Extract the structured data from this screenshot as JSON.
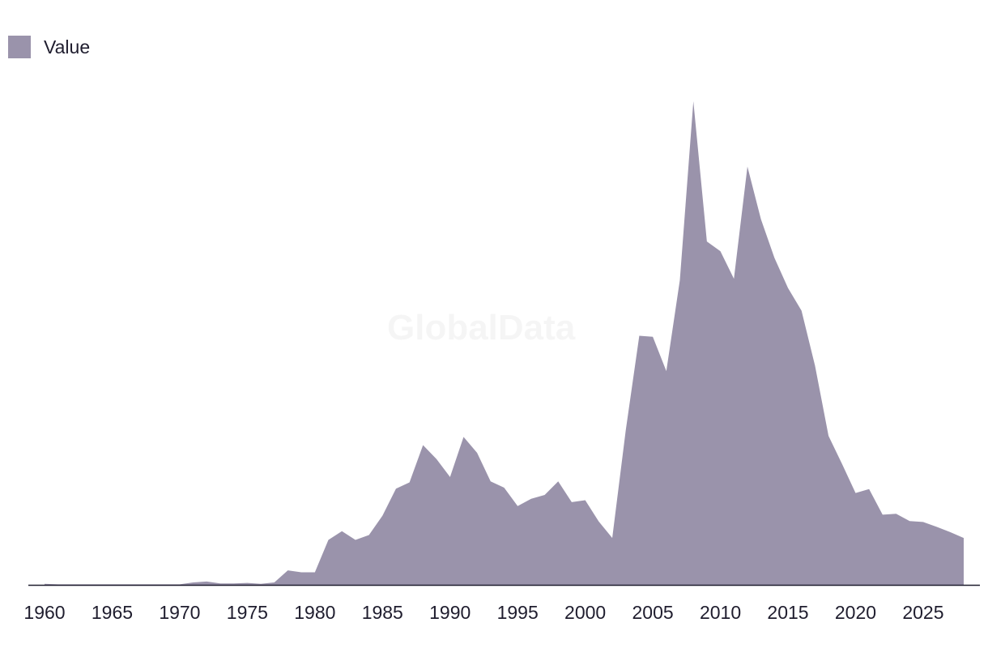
{
  "legend": {
    "label": "Value"
  },
  "watermark": "GlobalData",
  "colors": {
    "area": "#9a93ab",
    "axis": "#1f1d2e"
  },
  "chart_data": {
    "type": "area",
    "title": "",
    "xlabel": "",
    "ylabel": "",
    "grid": false,
    "legend_position": "top-left",
    "xlim": [
      1960,
      2028
    ],
    "ylim": [
      0,
      100
    ],
    "x_ticks": [
      1960,
      1965,
      1970,
      1975,
      1980,
      1985,
      1990,
      1995,
      2000,
      2005,
      2010,
      2015,
      2020,
      2025
    ],
    "series": [
      {
        "name": "Value",
        "x": [
          1960,
          1961,
          1962,
          1963,
          1964,
          1965,
          1966,
          1967,
          1968,
          1969,
          1970,
          1971,
          1972,
          1973,
          1974,
          1975,
          1976,
          1977,
          1978,
          1979,
          1980,
          1981,
          1982,
          1983,
          1984,
          1985,
          1986,
          1987,
          1988,
          1989,
          1990,
          1991,
          1992,
          1993,
          1994,
          1995,
          1996,
          1997,
          1998,
          1999,
          2000,
          2001,
          2002,
          2003,
          2004,
          2005,
          2006,
          2007,
          2008,
          2009,
          2010,
          2011,
          2012,
          2013,
          2014,
          2015,
          2016,
          2017,
          2018,
          2019,
          2020,
          2021,
          2022,
          2023,
          2024,
          2025,
          2026,
          2027,
          2028
        ],
        "values": [
          0.2,
          0.1,
          0.1,
          0.1,
          0.1,
          0.1,
          0.1,
          0.1,
          0.1,
          0.1,
          0.1,
          0.5,
          0.7,
          0.3,
          0.3,
          0.4,
          0.2,
          0.5,
          3.0,
          2.6,
          2.6,
          9.3,
          11.1,
          9.3,
          10.3,
          14.3,
          19.9,
          21.2,
          28.9,
          26.0,
          22.3,
          30.6,
          27.3,
          21.4,
          20.1,
          16.3,
          17.8,
          18.6,
          21.4,
          17.1,
          17.5,
          13.1,
          9.7,
          32.0,
          51.5,
          51.3,
          44.2,
          63.0,
          100.0,
          71.0,
          69.0,
          63.3,
          86.5,
          75.6,
          67.6,
          61.4,
          56.7,
          45.3,
          30.8,
          25.0,
          19.0,
          19.8,
          14.5,
          14.7,
          13.2,
          13.0,
          12.0,
          10.9,
          9.7
        ]
      }
    ]
  }
}
